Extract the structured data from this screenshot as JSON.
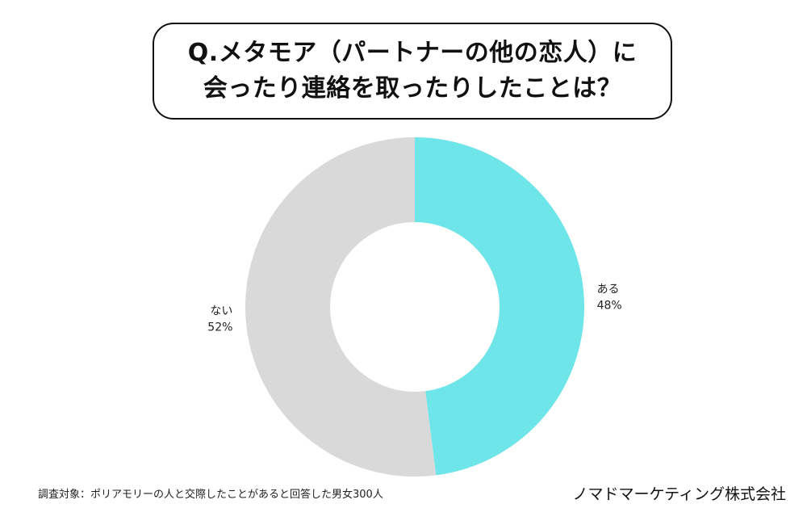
{
  "chart_data": {
    "type": "pie",
    "title": "Q.メタモア（パートナーの他の恋人）に会ったり連絡を取ったりしたことは？",
    "title_lines": [
      "Q.メタモア（パートナーの他の恋人）に",
      "会ったり連絡を取ったりしたことは？"
    ],
    "donut": true,
    "slices": [
      {
        "label": "ある",
        "value": 48,
        "value_text": "48%",
        "color": "#6ee5e9"
      },
      {
        "label": "ない",
        "value": 52,
        "value_text": "52%",
        "color": "#d9d9d9"
      }
    ]
  },
  "footnote": "調査対象：ポリアモリーの人と交際したことがあると回答した男女300人",
  "company": "ノマドマーケティング株式会社"
}
